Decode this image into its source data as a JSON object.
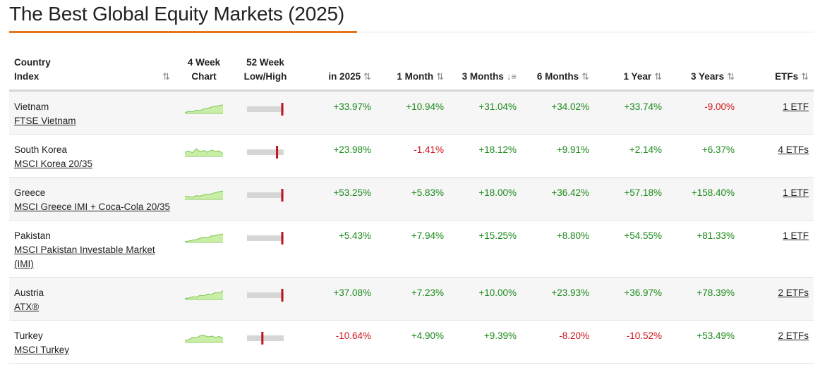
{
  "page": {
    "title": "The Best Global Equity Markets (2025)"
  },
  "colors": {
    "accent": "#e8751a",
    "positive": "#1a8a1a",
    "negative": "#d0141a",
    "spark_fill": "#c9efa6",
    "spark_line": "#7cc34d",
    "range_track": "#d6d6d6",
    "range_marker": "#c0111a"
  },
  "table": {
    "headers": {
      "country_line1": "Country",
      "country_line2": "Index",
      "chart_line1": "4 Week",
      "chart_line2": "Chart",
      "lowhigh_line1": "52 Week",
      "lowhigh_line2": "Low/High",
      "ytd": "in 2025",
      "m1": "1 Month",
      "m3": "3 Months",
      "m6": "6 Months",
      "y1": "1 Year",
      "y3": "3 Years",
      "etfs": "ETFs",
      "sort_icon": "⇅",
      "sort_desc_icon": "↓≡"
    },
    "rows": [
      {
        "country": "Vietnam",
        "index": "FTSE Vietnam",
        "ytd": "+33.97%",
        "m1": "+10.94%",
        "m3": "+31.04%",
        "m6": "+34.02%",
        "y1": "+33.74%",
        "y3": "-9.00%",
        "etfs": "1 ETF",
        "chart_trend": [
          0.1,
          0.22,
          0.18,
          0.35,
          0.3,
          0.5,
          0.55,
          0.7,
          0.78,
          0.85,
          0.95
        ],
        "range_position": 0.97
      },
      {
        "country": "South Korea",
        "index": "MSCI Korea 20/35",
        "ytd": "+23.98%",
        "m1": "-1.41%",
        "m3": "+18.12%",
        "m6": "+9.91%",
        "y1": "+2.14%",
        "y3": "+6.37%",
        "etfs": "4 ETFs",
        "chart_trend": [
          0.45,
          0.6,
          0.4,
          0.85,
          0.5,
          0.65,
          0.45,
          0.7,
          0.55,
          0.6,
          0.3
        ],
        "range_position": 0.82
      },
      {
        "country": "Greece",
        "index": "MSCI Greece IMI + Coca-Cola 20/35",
        "ytd": "+53.25%",
        "m1": "+5.83%",
        "m3": "+18.00%",
        "m6": "+36.42%",
        "y1": "+57.18%",
        "y3": "+158.40%",
        "etfs": "1 ETF",
        "chart_trend": [
          0.35,
          0.3,
          0.25,
          0.4,
          0.35,
          0.5,
          0.55,
          0.6,
          0.75,
          0.85,
          0.9
        ],
        "range_position": 0.97
      },
      {
        "country": "Pakistan",
        "index": "MSCI Pakistan Investable Market (IMI)",
        "ytd": "+5.43%",
        "m1": "+7.94%",
        "m3": "+15.25%",
        "m6": "+8.80%",
        "y1": "+54.55%",
        "y3": "+81.33%",
        "etfs": "1 ETF",
        "chart_trend": [
          0.1,
          0.15,
          0.25,
          0.3,
          0.45,
          0.55,
          0.5,
          0.7,
          0.75,
          0.85,
          0.9
        ],
        "range_position": 0.97
      },
      {
        "country": "Austria",
        "index": "ATX®",
        "ytd": "+37.08%",
        "m1": "+7.23%",
        "m3": "+10.00%",
        "m6": "+23.93%",
        "y1": "+36.97%",
        "y3": "+78.39%",
        "etfs": "2 ETFs",
        "chart_trend": [
          0.1,
          0.15,
          0.3,
          0.25,
          0.45,
          0.4,
          0.6,
          0.55,
          0.75,
          0.7,
          0.95
        ],
        "range_position": 0.97
      },
      {
        "country": "Turkey",
        "index": "MSCI Turkey",
        "ytd": "-10.64%",
        "m1": "+4.90%",
        "m3": "+9.39%",
        "m6": "-8.20%",
        "y1": "-10.52%",
        "y3": "+53.49%",
        "etfs": "2 ETFs",
        "chart_trend": [
          0.2,
          0.3,
          0.55,
          0.5,
          0.75,
          0.8,
          0.6,
          0.7,
          0.55,
          0.65,
          0.5
        ],
        "range_position": 0.42
      }
    ]
  }
}
